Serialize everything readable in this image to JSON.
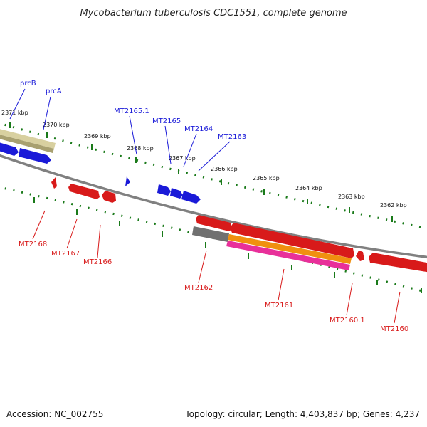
{
  "title": "Mycobacterium tuberculosis CDC1551, complete genome",
  "footer": {
    "accession": "Accession: NC_002755",
    "stats": "Topology: circular; Length: 4,403,837 bp; Genes: 4,237"
  },
  "scale": {
    "k2371": "2371 kbp",
    "k2370": "2370 kbp",
    "k2369": "2369 kbp",
    "k2368": "2368 kbp",
    "k2367": "2367 kbp",
    "k2366": "2366 kbp",
    "k2365": "2365 kbp",
    "k2364": "2364 kbp",
    "k2363": "2363 kbp",
    "k2362": "2362 kbp"
  },
  "genes": {
    "prcB": "prcB",
    "prcA": "prcA",
    "mt2165_1": "MT2165.1",
    "mt2165": "MT2165",
    "mt2164": "MT2164",
    "mt2163": "MT2163",
    "mt2168": "MT2168",
    "mt2167": "MT2167",
    "mt2166": "MT2166",
    "mt2162": "MT2162",
    "mt2161": "MT2161",
    "mt2160_1": "MT2160.1",
    "mt2160": "MT2160"
  },
  "colors": {
    "forward": "#1a1ad8",
    "reverse": "#d81a1a",
    "backbone": "#808080",
    "ticks": "#1a7a1a",
    "khaki": "#b8b07a",
    "orange": "#f09010",
    "magenta": "#e8309a"
  }
}
